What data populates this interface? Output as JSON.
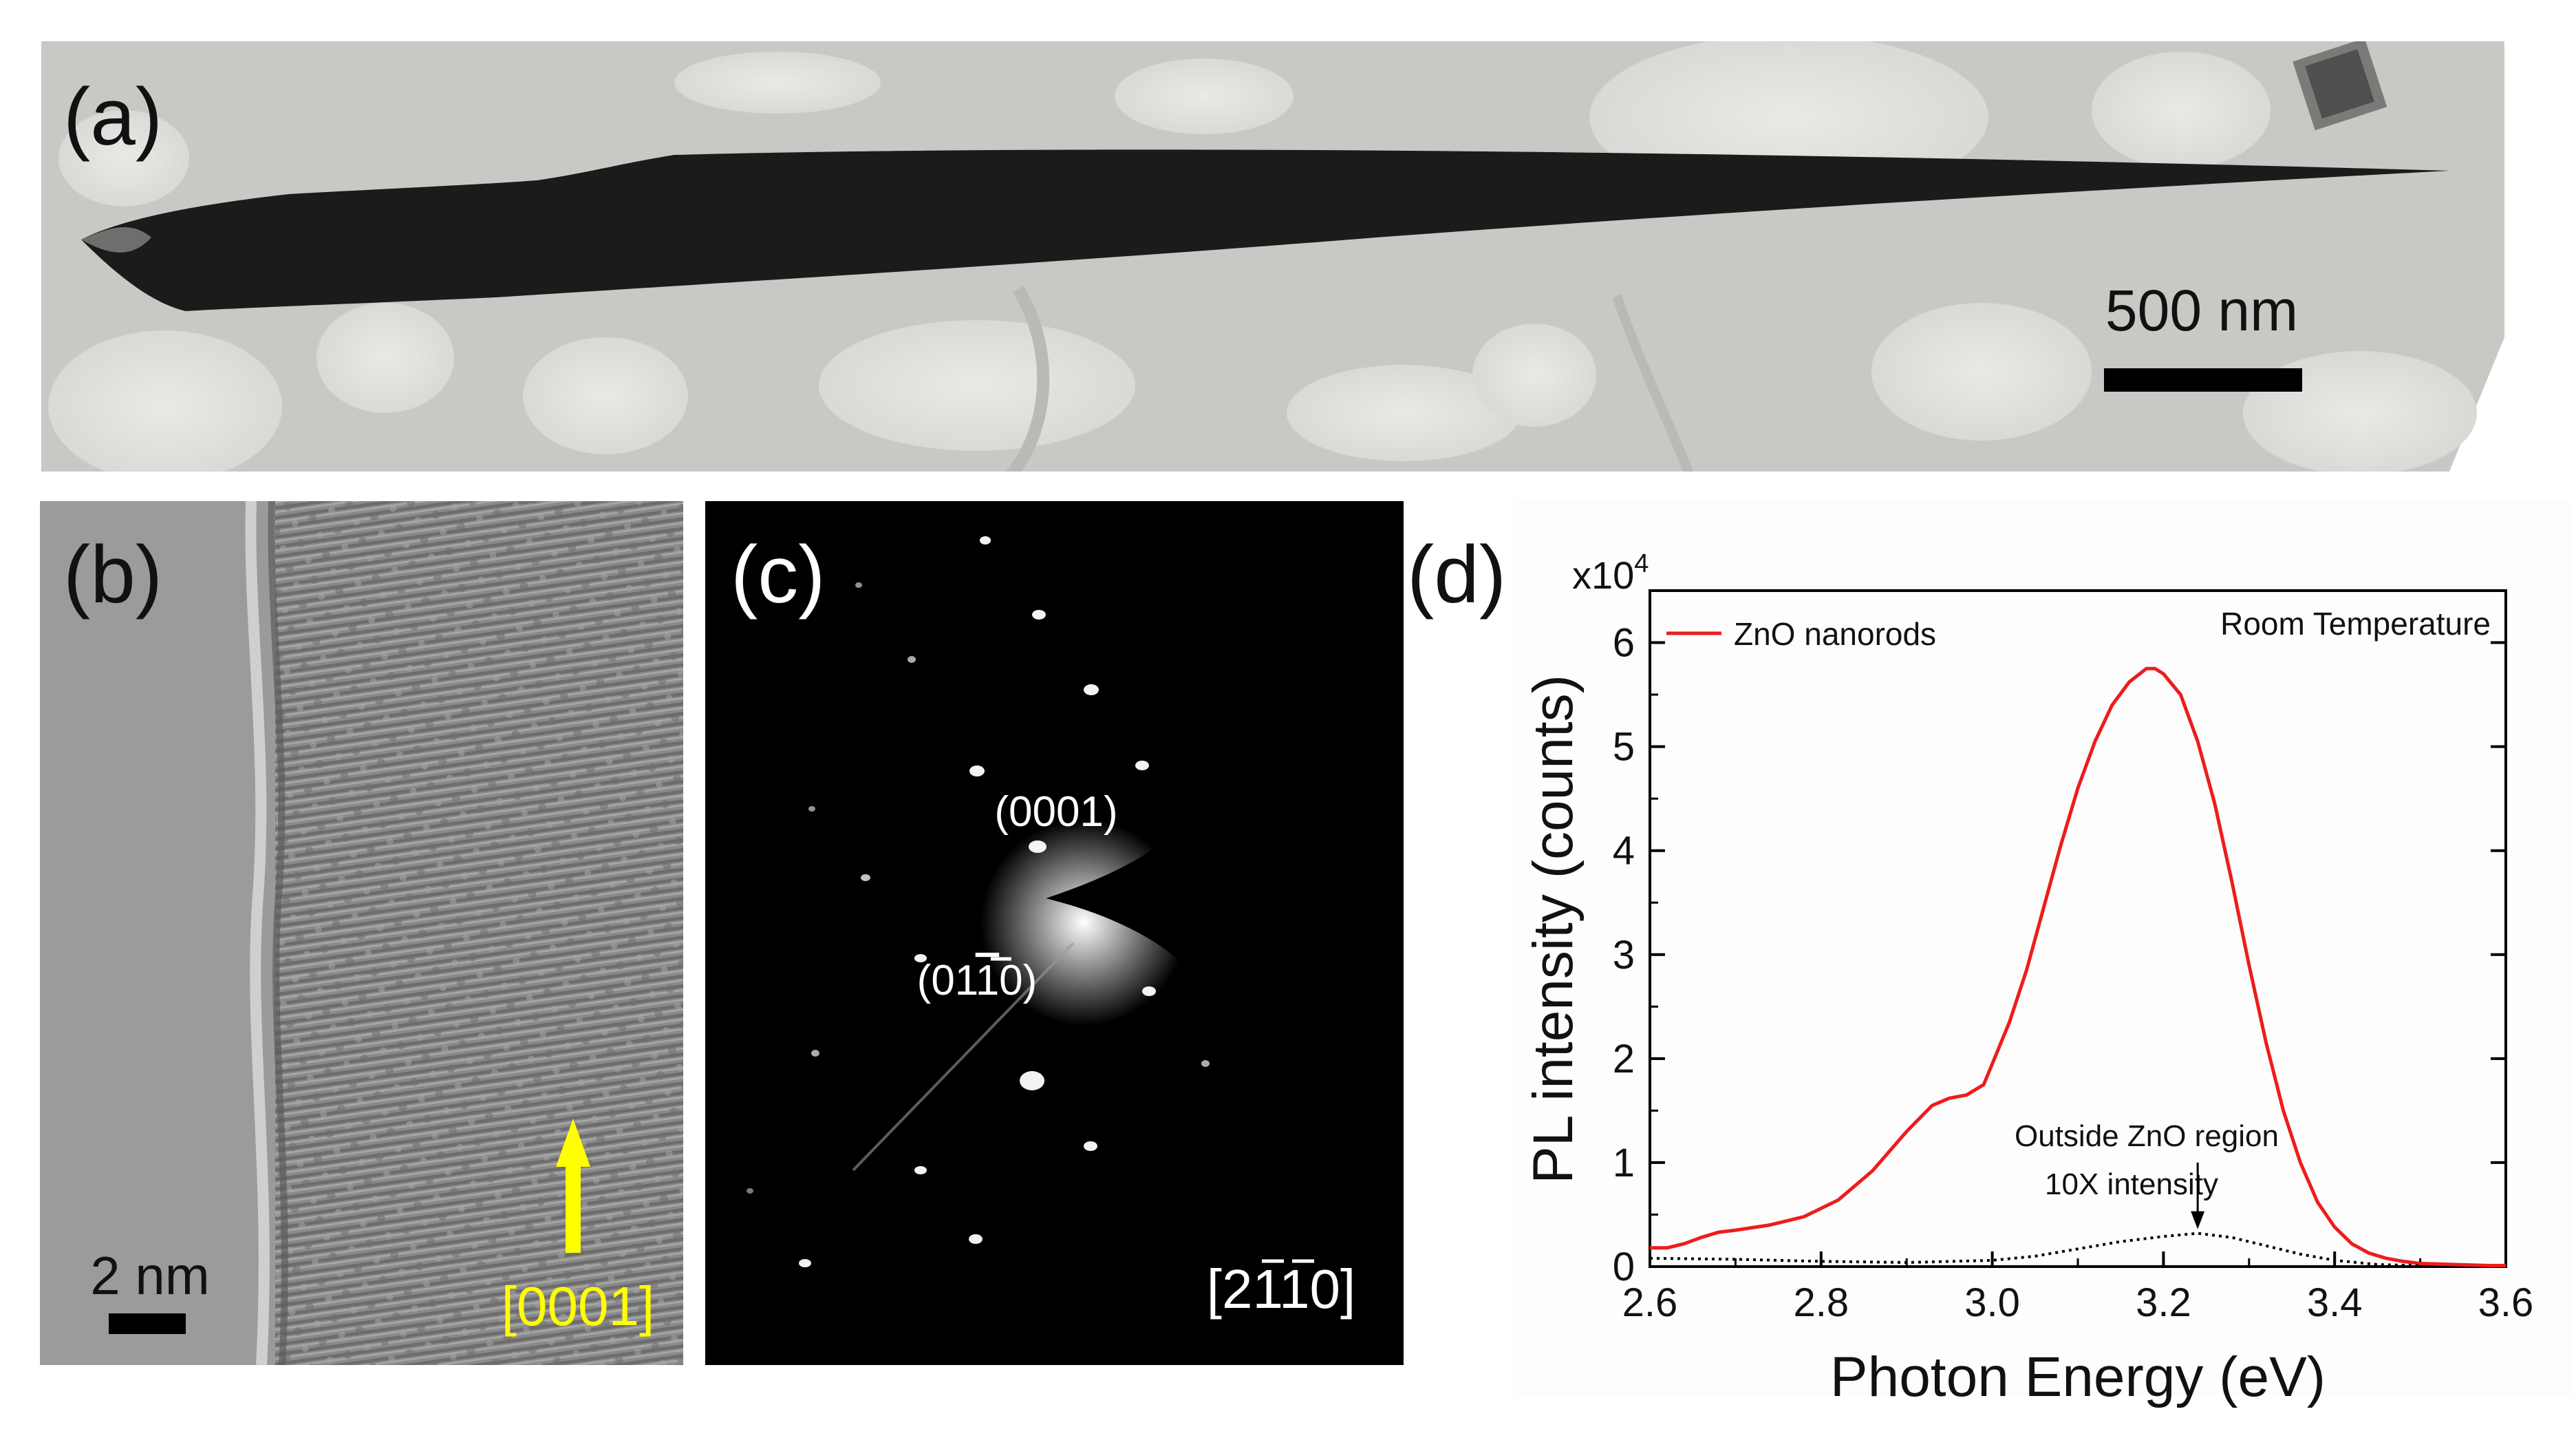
{
  "panels": {
    "a": {
      "label": "(a)",
      "scale_bar_label": "500 nm"
    },
    "b": {
      "label": "(b)",
      "scale_bar_label": "2 nm",
      "direction_label": "[0001]",
      "arrow_color": "#ffff00"
    },
    "c": {
      "label": "(c)",
      "spot_labels": {
        "spot1": "(0001)",
        "spot2_prefix": "(01",
        "spot2_bar": "1",
        "spot2_suffix": "0)"
      },
      "zone_axis": {
        "prefix": "[2",
        "bar1": "1",
        "bar2": "1",
        "suffix": "0]"
      }
    },
    "d": {
      "label": "(d)",
      "legend_label": "ZnO nanorods",
      "annotation_corner": "Room Temperature",
      "annotation_outside_line1": "Outside ZnO region",
      "annotation_outside_line2": "10X intensity"
    }
  },
  "colors": {
    "red_series": "#ee1c1c",
    "black_series": "#000000",
    "yellow_annotation": "#ffff00"
  },
  "chart_data": {
    "type": "line",
    "title": "",
    "xlabel": "Photon Energy (eV)",
    "ylabel": "PL intensity (counts)",
    "y_multiplier": {
      "base": "x10",
      "exponent": "4"
    },
    "xlim": [
      2.6,
      3.6
    ],
    "ylim": [
      0,
      6.5
    ],
    "x_ticks": [
      "2.6",
      "2.8",
      "3.0",
      "3.2",
      "3.4",
      "3.6"
    ],
    "y_ticks": [
      "0",
      "1",
      "2",
      "3",
      "4",
      "5",
      "6"
    ],
    "x_tick_values": [
      2.6,
      2.8,
      3.0,
      3.2,
      3.4,
      3.6
    ],
    "y_tick_values": [
      0,
      1,
      2,
      3,
      4,
      5,
      6
    ],
    "legend": "top-left",
    "series": [
      {
        "name": "ZnO nanorods",
        "style": "solid",
        "color": "#ee1c1c",
        "x": [
          2.6,
          2.62,
          2.64,
          2.66,
          2.68,
          2.7,
          2.74,
          2.78,
          2.82,
          2.86,
          2.9,
          2.93,
          2.95,
          2.97,
          2.99,
          3.0,
          3.02,
          3.04,
          3.06,
          3.08,
          3.1,
          3.12,
          3.14,
          3.16,
          3.18,
          3.19,
          3.2,
          3.22,
          3.24,
          3.26,
          3.28,
          3.3,
          3.32,
          3.34,
          3.36,
          3.38,
          3.4,
          3.42,
          3.44,
          3.46,
          3.48,
          3.5,
          3.54,
          3.58,
          3.6
        ],
        "y": [
          0.18,
          0.18,
          0.22,
          0.28,
          0.33,
          0.35,
          0.4,
          0.48,
          0.64,
          0.92,
          1.3,
          1.55,
          1.62,
          1.65,
          1.75,
          1.95,
          2.35,
          2.85,
          3.45,
          4.05,
          4.6,
          5.05,
          5.4,
          5.62,
          5.75,
          5.75,
          5.7,
          5.5,
          5.05,
          4.45,
          3.7,
          2.9,
          2.15,
          1.5,
          1.0,
          0.62,
          0.38,
          0.22,
          0.13,
          0.08,
          0.05,
          0.03,
          0.02,
          0.01,
          0.01
        ]
      },
      {
        "name": "Outside ZnO region 10X intensity",
        "style": "dotted",
        "color": "#000000",
        "x": [
          2.6,
          2.7,
          2.8,
          2.9,
          3.0,
          3.05,
          3.1,
          3.15,
          3.2,
          3.24,
          3.28,
          3.32,
          3.36,
          3.4,
          3.45,
          3.5
        ],
        "y": [
          0.08,
          0.07,
          0.05,
          0.04,
          0.06,
          0.1,
          0.17,
          0.24,
          0.29,
          0.32,
          0.28,
          0.2,
          0.12,
          0.06,
          0.02,
          0.01
        ]
      }
    ],
    "annotations": [
      {
        "text": "Outside ZnO region",
        "x": 3.24,
        "y": 1.65
      },
      {
        "text": "10X intensity",
        "x": 3.24,
        "y": 1.15
      },
      {
        "text": "Room Temperature",
        "location": "top-right"
      }
    ],
    "arrow_annotation": {
      "x": 3.24,
      "y_from": 1.0,
      "y_to": 0.36
    }
  }
}
